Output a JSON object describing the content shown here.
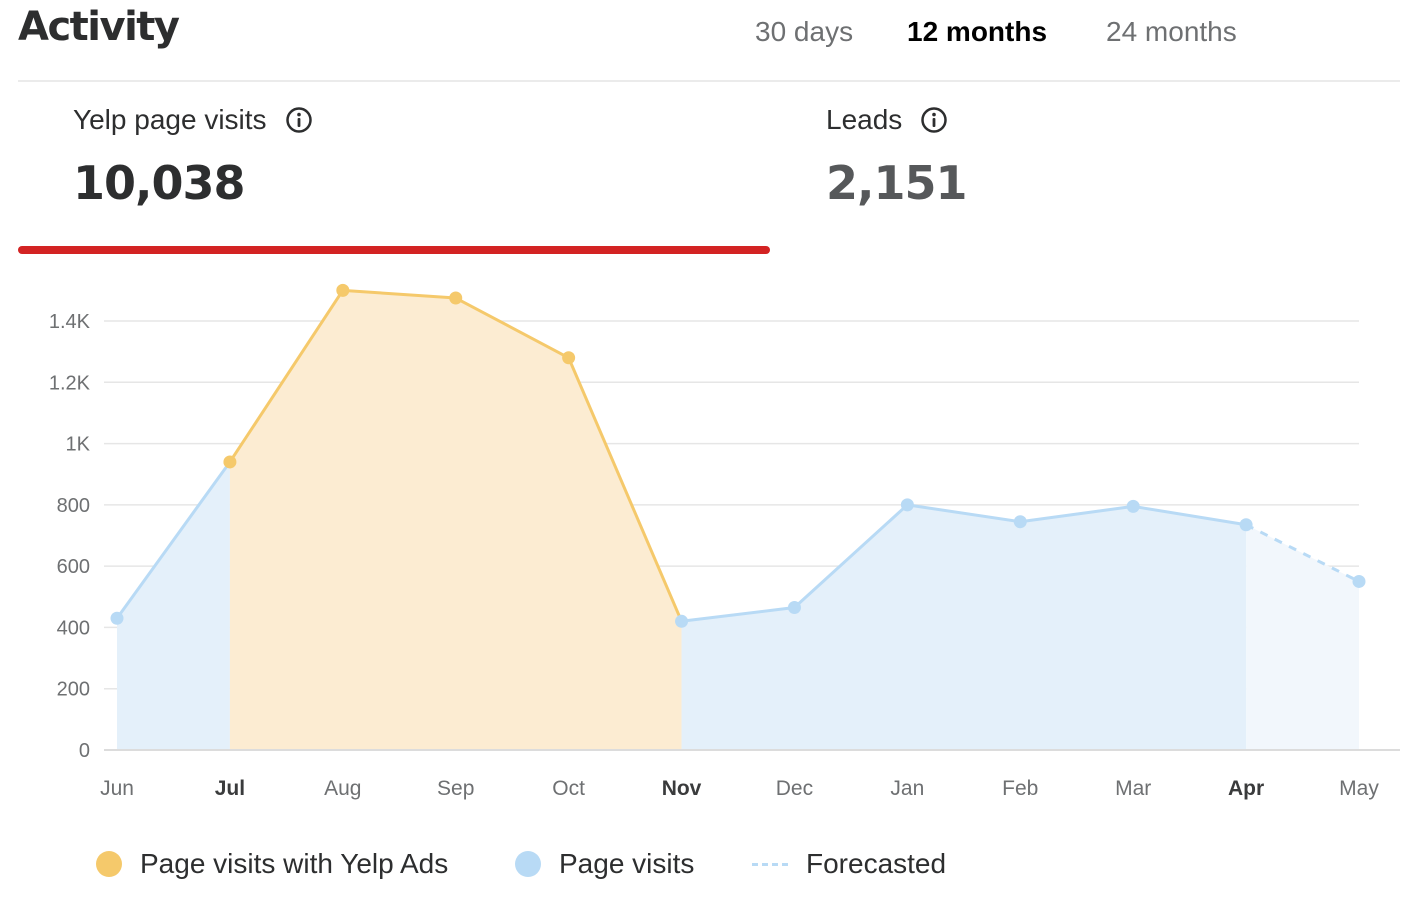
{
  "header": {
    "title": "Activity",
    "tabs": [
      {
        "label": "30 days",
        "active": false
      },
      {
        "label": "12 months",
        "active": true
      },
      {
        "label": "24 months",
        "active": false
      }
    ]
  },
  "metrics": [
    {
      "label": "Yelp page visits",
      "value": "10,038",
      "icon": "info-icon",
      "selected": true
    },
    {
      "label": "Leads",
      "value": "2,151",
      "icon": "info-icon",
      "selected": false
    }
  ],
  "colors": {
    "accent": "#d32323",
    "ads_line": "#f5c96b",
    "ads_fill": "#fcecd2",
    "visits_line": "#b8daf5",
    "visits_fill": "#e4f0fa",
    "forecast_fill": "#f2f7fc",
    "grid": "#e6e6e6",
    "axis_text": "#6e7072"
  },
  "chart_data": {
    "type": "area",
    "x": [
      "Jun",
      "Jul",
      "Aug",
      "Sep",
      "Oct",
      "Nov",
      "Dec",
      "Jan",
      "Feb",
      "Mar",
      "Apr",
      "May"
    ],
    "values": [
      430,
      940,
      1500,
      1475,
      1280,
      420,
      465,
      800,
      745,
      795,
      735,
      550
    ],
    "segments": [
      {
        "name": "Page visits",
        "from": "Jun",
        "to": "Jul"
      },
      {
        "name": "Page visits with Yelp Ads",
        "from": "Jul",
        "to": "Nov"
      },
      {
        "name": "Page visits",
        "from": "Nov",
        "to": "Apr"
      },
      {
        "name": "Forecasted",
        "from": "Apr",
        "to": "May"
      }
    ],
    "ylim": [
      0,
      1400
    ],
    "yticks": [
      0,
      200,
      400,
      600,
      800,
      1000,
      1200,
      1400
    ],
    "ytick_labels": [
      "0",
      "200",
      "400",
      "600",
      "800",
      "1K",
      "1.2K",
      "1.4K"
    ],
    "bold_x_labels": [
      "Jul",
      "Nov",
      "Apr"
    ],
    "grid": true,
    "legend": {
      "placement": "bottom",
      "entries": [
        {
          "label": "Page visits with Yelp Ads",
          "marker": "dot",
          "color": "#f5c96b"
        },
        {
          "label": "Page visits",
          "marker": "dot",
          "color": "#b8daf5"
        },
        {
          "label": "Forecasted",
          "marker": "dashed-line",
          "color": "#b8daf5"
        }
      ]
    }
  }
}
